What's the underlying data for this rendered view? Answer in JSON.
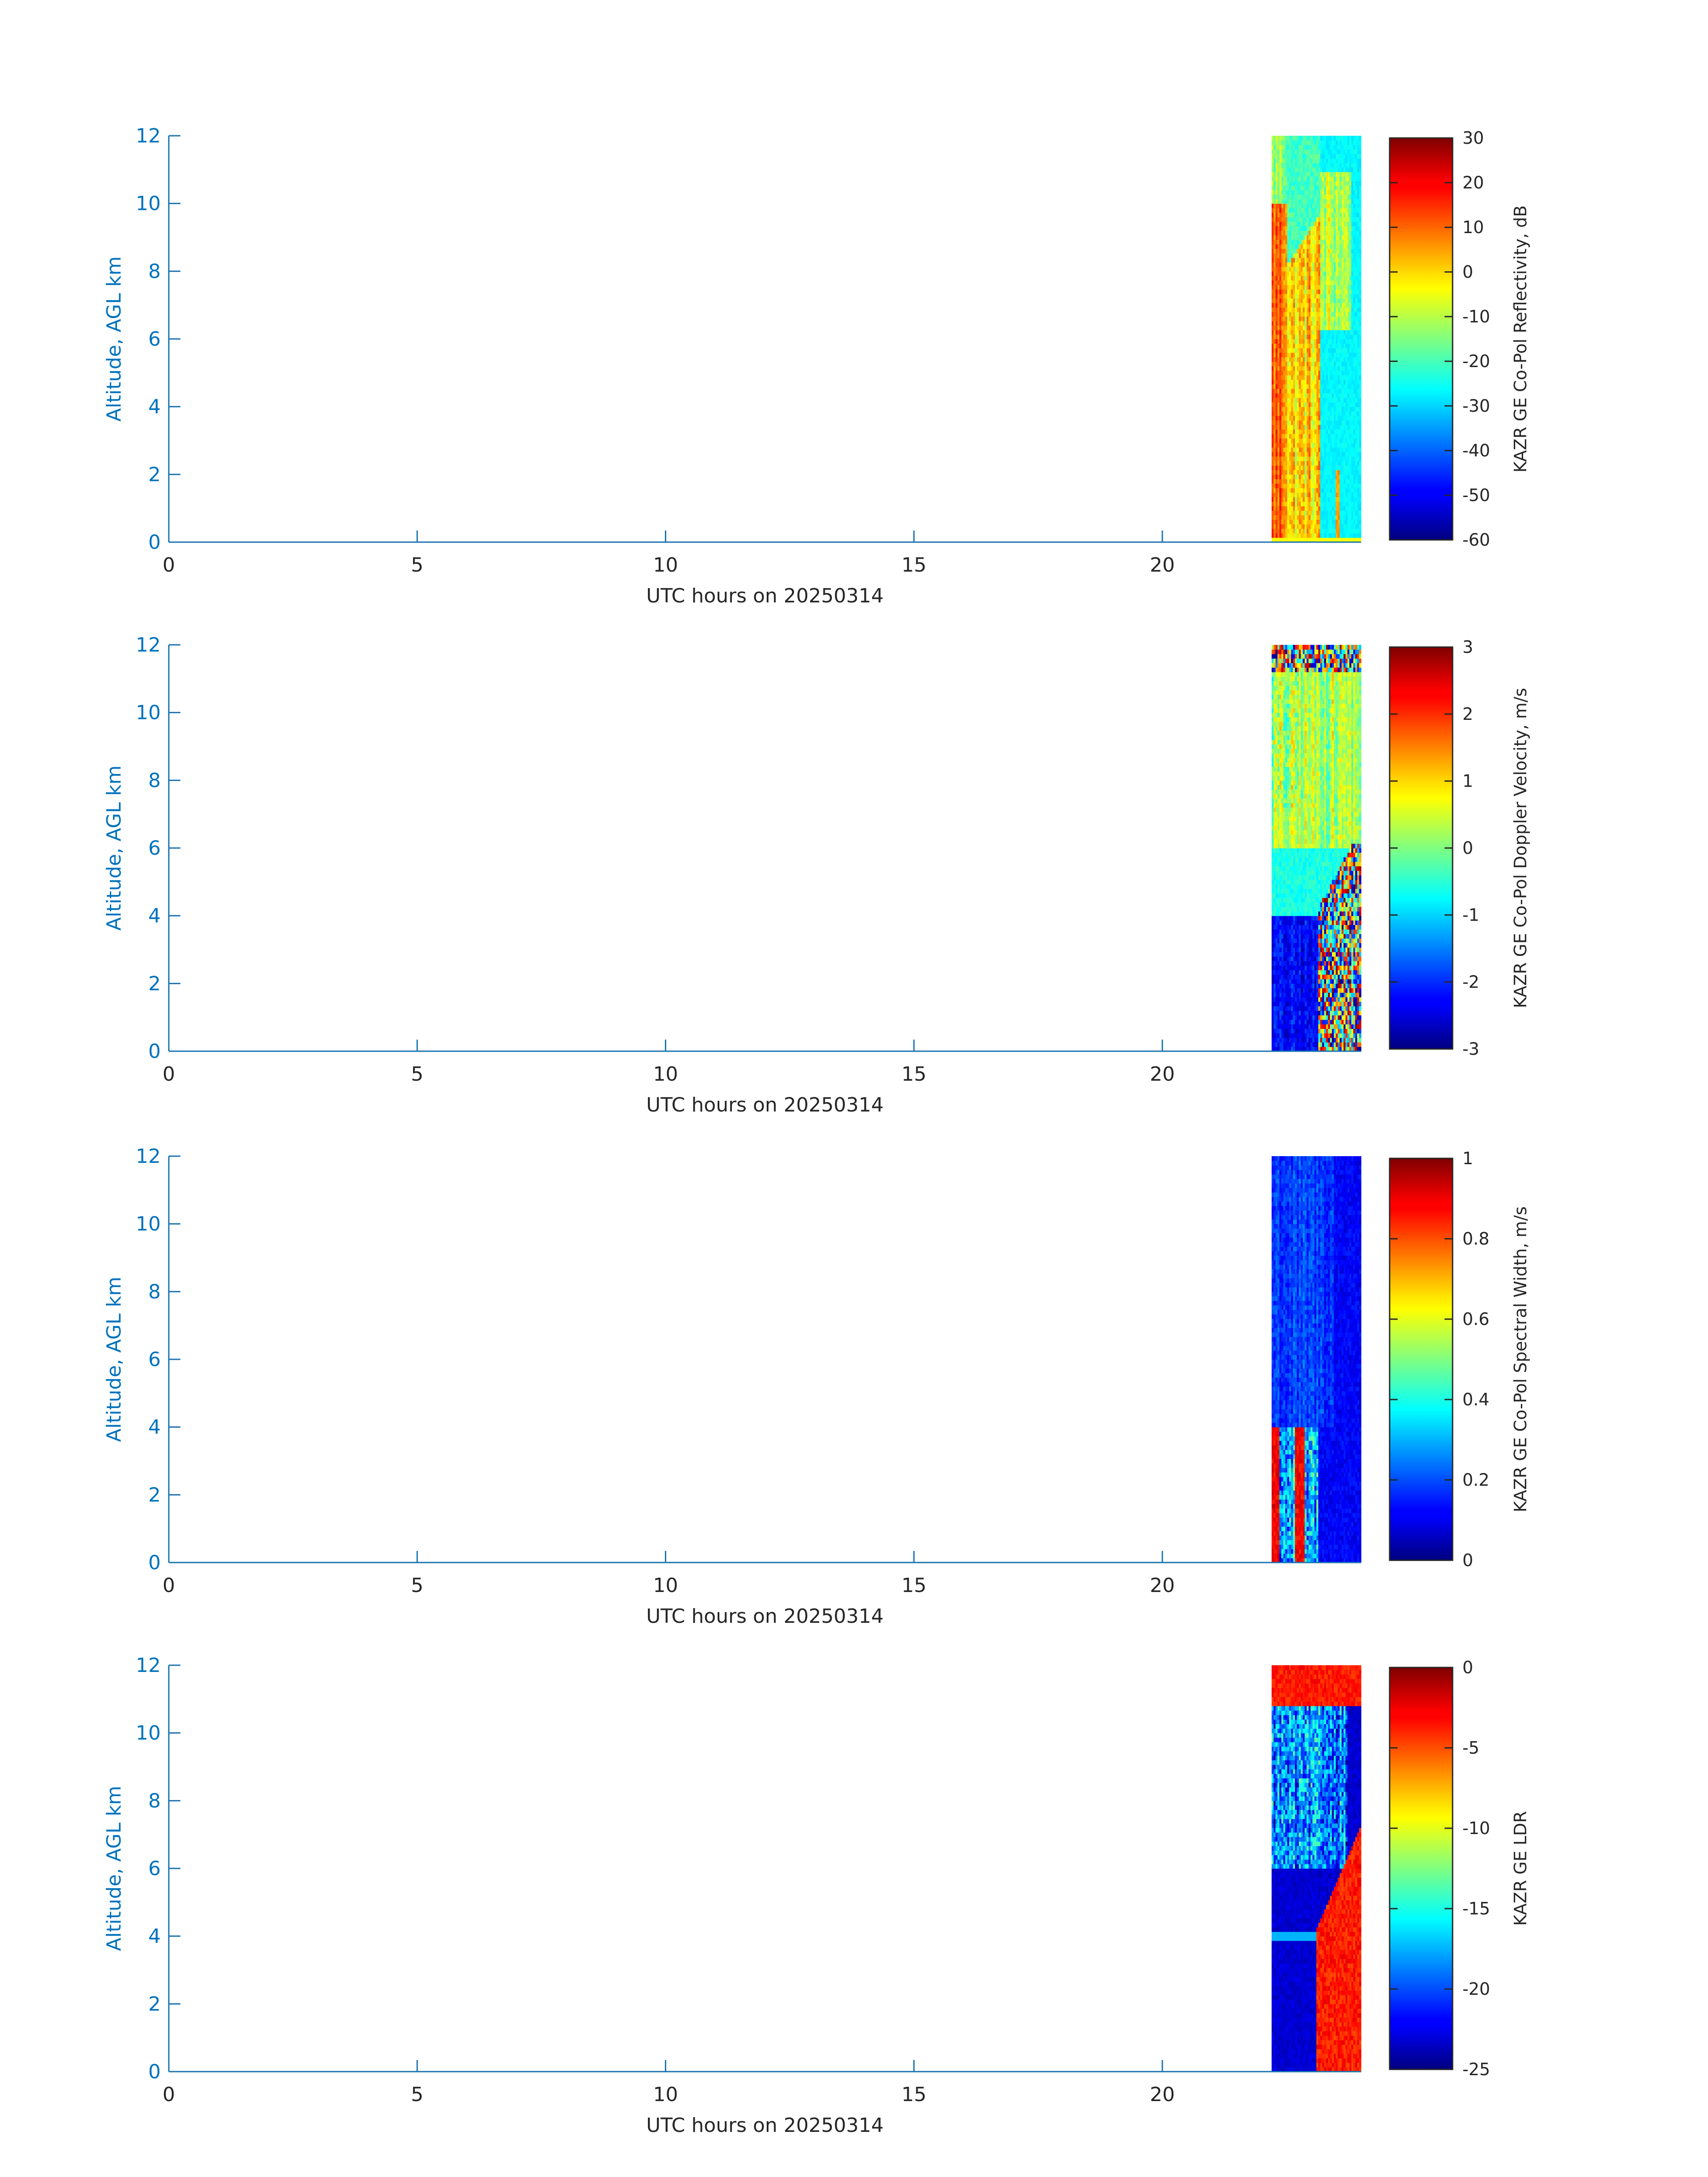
{
  "chart_data": [
    {
      "type": "heatmap",
      "x": {
        "label": "UTC hours on 20250314",
        "ticks": [
          0,
          5,
          10,
          15,
          20
        ],
        "lim": [
          0,
          24
        ]
      },
      "y": {
        "label": "Altitude, AGL km",
        "ticks": [
          0,
          2,
          4,
          6,
          8,
          10,
          12
        ],
        "lim": [
          0,
          12
        ]
      },
      "data_time_range": [
        22.2,
        24
      ],
      "colorbar": {
        "label": "KAZR GE Co-Pol Reflectivity, dB",
        "ticks": [
          30,
          20,
          10,
          0,
          -10,
          -20,
          -30,
          -40,
          -50,
          -60
        ],
        "lim": [
          -60,
          30
        ]
      },
      "pattern": "reflectivity"
    },
    {
      "type": "heatmap",
      "x": {
        "label": "UTC hours on 20250314",
        "ticks": [
          0,
          5,
          10,
          15,
          20
        ],
        "lim": [
          0,
          24
        ]
      },
      "y": {
        "label": "Altitude, AGL km",
        "ticks": [
          0,
          2,
          4,
          6,
          8,
          10,
          12
        ],
        "lim": [
          0,
          12
        ]
      },
      "data_time_range": [
        22.2,
        24
      ],
      "colorbar": {
        "label": "KAZR GE Co-Pol Doppler Velocity, m/s",
        "ticks": [
          3,
          2,
          1,
          0,
          -1,
          -2,
          -3
        ],
        "lim": [
          -3,
          3
        ]
      },
      "pattern": "velocity"
    },
    {
      "type": "heatmap",
      "x": {
        "label": "UTC hours on 20250314",
        "ticks": [
          0,
          5,
          10,
          15,
          20
        ],
        "lim": [
          0,
          24
        ]
      },
      "y": {
        "label": "Altitude, AGL km",
        "ticks": [
          0,
          2,
          4,
          6,
          8,
          10,
          12
        ],
        "lim": [
          0,
          12
        ]
      },
      "data_time_range": [
        22.2,
        24
      ],
      "colorbar": {
        "label": "KAZR GE Co-Pol Spectral Width, m/s",
        "ticks": [
          1,
          0.8,
          0.6,
          0.4,
          0.2,
          0
        ],
        "lim": [
          0,
          1
        ]
      },
      "pattern": "width"
    },
    {
      "type": "heatmap",
      "x": {
        "label": "UTC hours on 20250314",
        "ticks": [
          0,
          5,
          10,
          15,
          20
        ],
        "lim": [
          0,
          24
        ]
      },
      "y": {
        "label": "Altitude, AGL km",
        "ticks": [
          0,
          2,
          4,
          6,
          8,
          10,
          12
        ],
        "lim": [
          0,
          12
        ]
      },
      "data_time_range": [
        22.2,
        24
      ],
      "colorbar": {
        "label": "KAZR GE LDR",
        "ticks": [
          0,
          -5,
          -10,
          -15,
          -20,
          -25
        ],
        "lim": [
          -25,
          0
        ]
      },
      "pattern": "ldr"
    }
  ],
  "colormap": "jet",
  "colors": {
    "axis": "#1a73b0",
    "ytick_text": "#0072bd",
    "text": "#262626"
  }
}
